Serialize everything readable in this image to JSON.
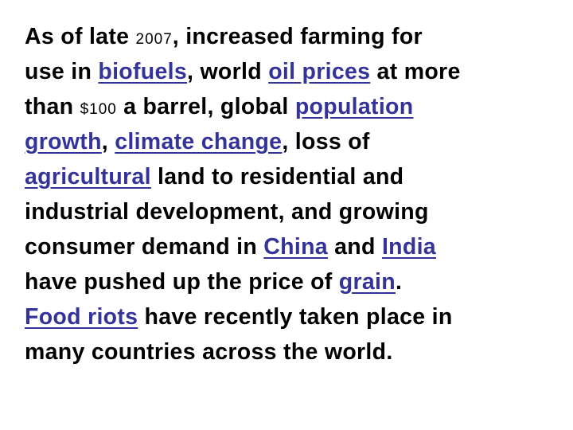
{
  "lines": [
    [
      {
        "text": "As of late "
      },
      {
        "text": "2007",
        "small": true
      },
      {
        "text": ", increased farming for"
      }
    ],
    [
      {
        "text": "use in "
      },
      {
        "text": "biofuels",
        "link": true
      },
      {
        "text": ", world "
      },
      {
        "text": "oil prices",
        "link": true
      },
      {
        "text": " at more"
      }
    ],
    [
      {
        "text": "than "
      },
      {
        "text": "$100",
        "small": true
      },
      {
        "text": " a barrel, global "
      },
      {
        "text": "population",
        "link": true
      }
    ],
    [
      {
        "text": "growth",
        "link": true
      },
      {
        "text": ", "
      },
      {
        "text": "climate change",
        "link": true
      },
      {
        "text": ", loss of"
      }
    ],
    [
      {
        "text": "agricultural",
        "link": true
      },
      {
        "text": " land to residential and"
      }
    ],
    [
      {
        "text": "industrial development, and growing"
      }
    ],
    [
      {
        "text": "consumer demand in "
      },
      {
        "text": "China",
        "link": true
      },
      {
        "text": " and "
      },
      {
        "text": "India",
        "link": true
      }
    ],
    [
      {
        "text": "have pushed up the price of "
      },
      {
        "text": "grain",
        "link": true
      },
      {
        "text": "."
      }
    ],
    [
      {
        "text": "Food riots",
        "link": true
      },
      {
        "text": " have recently taken place in"
      }
    ],
    [
      {
        "text": "many countries across the world."
      }
    ]
  ]
}
